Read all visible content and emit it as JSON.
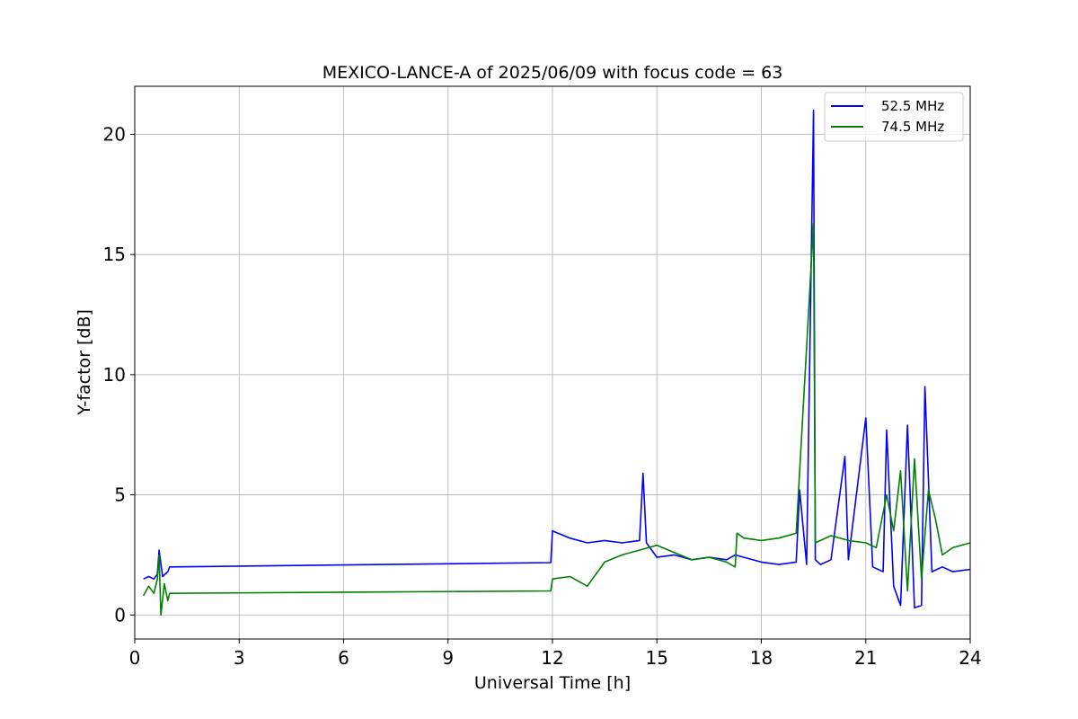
{
  "chart_data": {
    "type": "line",
    "title": "MEXICO-LANCE-A of 2025/06/09 with focus code = 63",
    "xlabel": "Universal Time [h]",
    "ylabel": "Y-factor [dB]",
    "xlim": [
      0,
      24
    ],
    "ylim": [
      -1,
      22
    ],
    "xticks": [
      0,
      3,
      6,
      9,
      12,
      15,
      18,
      21,
      24
    ],
    "yticks": [
      0,
      5,
      10,
      15,
      20
    ],
    "grid": true,
    "legend_position": "top-right",
    "series": [
      {
        "name": "52.5 MHz",
        "color": "#0000ff",
        "x": [
          0.25,
          0.4,
          0.55,
          0.65,
          0.7,
          0.8,
          0.95,
          1.0,
          6.0,
          11.95,
          12.0,
          12.5,
          13.0,
          13.5,
          14.0,
          14.5,
          14.6,
          14.7,
          15.0,
          15.5,
          16.0,
          16.5,
          17.0,
          17.25,
          17.5,
          18.0,
          18.5,
          19.0,
          19.1,
          19.3,
          19.5,
          19.55,
          19.7,
          20.0,
          20.4,
          20.5,
          21.0,
          21.2,
          21.5,
          21.6,
          21.8,
          22.0,
          22.2,
          22.4,
          22.6,
          22.7,
          22.9,
          23.2,
          23.5,
          24.0
        ],
        "y": [
          1.5,
          1.6,
          1.5,
          1.7,
          2.7,
          1.6,
          1.8,
          2.0,
          2.08,
          2.18,
          3.5,
          3.2,
          3.0,
          3.1,
          3.0,
          3.1,
          5.9,
          3.0,
          2.4,
          2.5,
          2.3,
          2.4,
          2.3,
          2.5,
          2.4,
          2.2,
          2.1,
          2.2,
          5.2,
          2.1,
          21.0,
          2.3,
          2.1,
          2.3,
          6.6,
          2.3,
          8.2,
          2.0,
          1.8,
          7.7,
          1.2,
          0.4,
          7.9,
          0.3,
          0.4,
          9.5,
          1.8,
          2.0,
          1.8,
          1.9
        ]
      },
      {
        "name": "74.5 MHz",
        "color": "#008000",
        "x": [
          0.25,
          0.4,
          0.55,
          0.65,
          0.7,
          0.75,
          0.85,
          0.95,
          1.0,
          6.0,
          11.95,
          12.0,
          12.5,
          13.0,
          13.5,
          14.0,
          14.5,
          15.0,
          15.5,
          16.0,
          16.5,
          17.0,
          17.25,
          17.3,
          17.5,
          18.0,
          18.5,
          19.0,
          19.5,
          19.55,
          20.0,
          20.5,
          21.0,
          21.3,
          21.6,
          21.8,
          22.0,
          22.2,
          22.4,
          22.6,
          22.8,
          23.0,
          23.2,
          23.5,
          24.0
        ],
        "y": [
          0.8,
          1.2,
          0.9,
          1.5,
          2.5,
          0.0,
          1.3,
          0.6,
          0.9,
          0.95,
          1.0,
          1.5,
          1.6,
          1.2,
          2.2,
          2.5,
          2.7,
          2.9,
          2.6,
          2.3,
          2.4,
          2.2,
          2.0,
          3.4,
          3.2,
          3.1,
          3.2,
          3.4,
          16.3,
          3.0,
          3.3,
          3.1,
          3.0,
          2.8,
          5.0,
          3.5,
          6.0,
          1.0,
          6.5,
          1.5,
          5.2,
          4.0,
          2.5,
          2.8,
          3.0
        ]
      }
    ]
  }
}
